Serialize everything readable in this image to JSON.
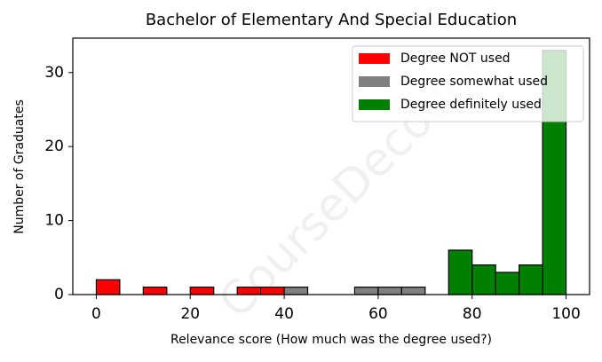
{
  "chart_data": {
    "type": "histogram",
    "title": "Bachelor of Elementary And Special Education",
    "xlabel": "Relevance score (How much was the degree used?)",
    "ylabel": "Number of Graduates",
    "watermark": "CourseDecoder",
    "bins": [
      0,
      5,
      10,
      15,
      20,
      25,
      30,
      35,
      40,
      45,
      50,
      55,
      60,
      65,
      70,
      75,
      80,
      85,
      90,
      95,
      100
    ],
    "series": [
      {
        "name": "Degree NOT used",
        "color": "#ff0000",
        "values": [
          2,
          0,
          1,
          0,
          1,
          0,
          1,
          1,
          0,
          0,
          0,
          0,
          0,
          0,
          0,
          0,
          0,
          0,
          0,
          0
        ]
      },
      {
        "name": "Degree somewhat used",
        "color": "#808080",
        "values": [
          0,
          0,
          0,
          0,
          0,
          0,
          0,
          0,
          1,
          0,
          0,
          1,
          1,
          1,
          0,
          0,
          0,
          0,
          0,
          0
        ]
      },
      {
        "name": "Degree definitely used",
        "color": "#008000",
        "values": [
          0,
          0,
          0,
          0,
          0,
          0,
          0,
          0,
          0,
          0,
          0,
          0,
          0,
          0,
          0,
          6,
          4,
          3,
          4,
          33
        ]
      }
    ],
    "xlim": [
      -5,
      105
    ],
    "ylim": [
      0,
      34.65
    ],
    "xticks": [
      0,
      20,
      40,
      60,
      80,
      100
    ],
    "yticks": [
      0,
      10,
      20,
      30
    ],
    "legend": "upper right"
  }
}
